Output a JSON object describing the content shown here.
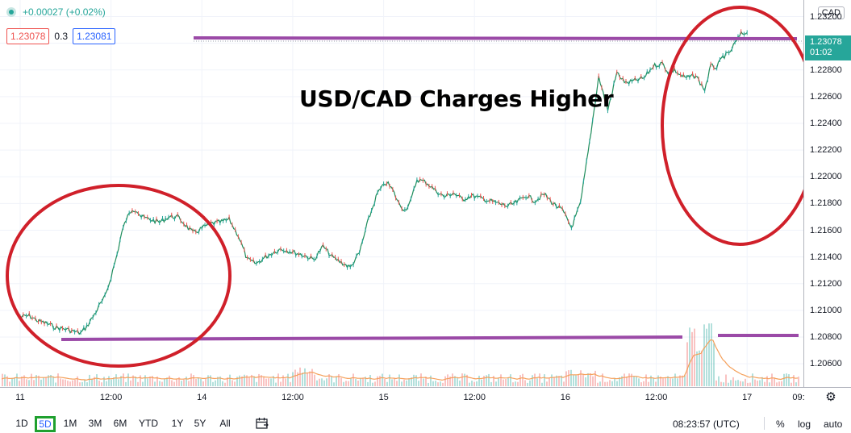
{
  "header": {
    "change": "+0.00027 (+0.02%)",
    "bid": "1.23078",
    "spread": "0.3",
    "ask": "1.23081"
  },
  "annotation": {
    "headline": "USD/CAD Charges Higher"
  },
  "price_axis": {
    "currency": "CAD",
    "last_price": "1.23078",
    "countdown": "01:02"
  },
  "time_axis_labels": [
    "11",
    "12:00",
    "14",
    "12:00",
    "15",
    "12:00",
    "16",
    "12:00",
    "17",
    "09:"
  ],
  "bottom_bar": {
    "ranges": [
      "1D",
      "5D",
      "1M",
      "3M",
      "6M",
      "YTD",
      "1Y",
      "5Y",
      "All"
    ],
    "active_range": "5D",
    "clock": "08:23:57 (UTC)",
    "percent": "%",
    "log": "log",
    "auto": "auto"
  },
  "colors": {
    "up": "#26a69a",
    "down": "#ef5350",
    "line": "#1e8c5a",
    "circle": "#d0202a",
    "level": "#9b4aa7",
    "volume_ma": "#f5a05a"
  },
  "chart_data": {
    "type": "line",
    "title": "",
    "xlabel": "",
    "ylabel": "",
    "x_ticks": [
      "11",
      "12:00",
      "14",
      "12:00",
      "15",
      "12:00",
      "16",
      "12:00",
      "17",
      "09:"
    ],
    "y_ticks": [
      1.232,
      1.23,
      1.228,
      1.226,
      1.224,
      1.222,
      1.22,
      1.218,
      1.216,
      1.214,
      1.212,
      1.21,
      1.208,
      1.206
    ],
    "ylim": [
      1.2045,
      1.233
    ],
    "grid": true,
    "series": [
      {
        "name": "",
        "x": [
          0.0,
          0.3,
          0.6,
          0.9,
          1.2,
          1.5,
          1.8,
          2.0,
          2.2,
          2.4,
          2.6,
          2.8,
          3.0,
          3.2,
          3.35,
          3.5,
          3.7,
          3.85,
          4.0,
          4.3,
          4.6,
          4.9,
          5.2,
          5.5,
          5.7,
          5.9,
          6.1,
          6.3,
          6.6,
          6.9,
          7.2,
          7.5,
          7.8,
          8.1,
          8.4,
          8.6,
          8.8,
          9.1,
          9.4,
          9.7,
          10.0,
          10.3,
          10.6,
          10.9,
          11.2,
          11.5,
          11.8,
          12.1,
          12.3,
          12.5,
          12.7,
          12.9,
          13.1,
          13.4,
          13.7,
          14.0,
          14.3,
          14.6,
          14.9,
          15.2,
          15.5,
          15.8,
          16.1,
          16.4,
          16.7,
          17.0,
          17.3,
          17.6,
          17.9,
          18.2,
          18.5,
          18.8,
          19.1,
          19.4,
          19.7,
          20.0,
          20.3,
          20.6,
          20.9,
          21.2,
          21.4,
          21.6,
          21.8,
          22.0,
          22.3,
          22.6,
          22.8,
          23.0,
          23.2,
          23.4,
          23.6,
          23.8,
          24.0
        ],
        "values": [
          1.2095,
          1.2096,
          1.2092,
          1.209,
          1.2087,
          1.2086,
          1.2084,
          1.2083,
          1.2088,
          1.2095,
          1.2103,
          1.211,
          1.2125,
          1.2142,
          1.2158,
          1.2168,
          1.2176,
          1.2175,
          1.217,
          1.2168,
          1.2166,
          1.217,
          1.217,
          1.2163,
          1.2158,
          1.216,
          1.2163,
          1.2165,
          1.2166,
          1.2168,
          1.2156,
          1.2138,
          1.2135,
          1.214,
          1.2144,
          1.2146,
          1.2145,
          1.2143,
          1.2141,
          1.2138,
          1.2148,
          1.214,
          1.2136,
          1.2132,
          1.2143,
          1.2168,
          1.2188,
          1.2196,
          1.219,
          1.218,
          1.2175,
          1.2182,
          1.2198,
          1.2196,
          1.219,
          1.2185,
          1.2188,
          1.2183,
          1.2186,
          1.2184,
          1.2182,
          1.218,
          1.2178,
          1.2181,
          1.2186,
          1.2182,
          1.2187,
          1.218,
          1.2175,
          1.2162,
          1.218,
          1.2226,
          1.2275,
          1.225,
          1.2278,
          1.227,
          1.2272,
          1.2274,
          1.2283,
          1.2285,
          1.2278,
          1.228,
          1.2276,
          1.2274,
          1.2276,
          1.2265,
          1.2283,
          1.2282,
          1.229,
          1.2292,
          1.23,
          1.2307,
          1.2308
        ]
      }
    ],
    "annotations": [
      "USD/CAD Charges Higher"
    ]
  }
}
